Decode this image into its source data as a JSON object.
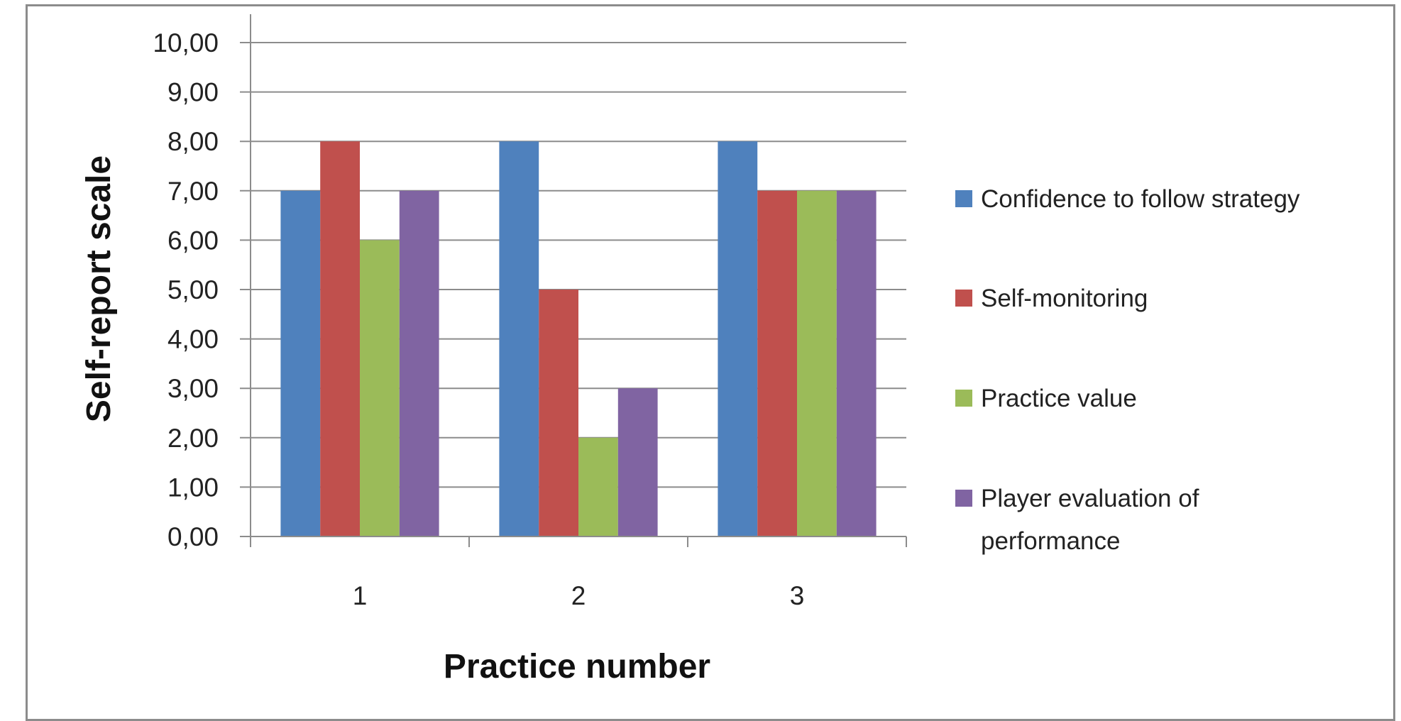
{
  "chart_data": {
    "type": "bar",
    "title": "",
    "xlabel": "Practice number",
    "ylabel": "Self-report scale",
    "categories": [
      "1",
      "2",
      "3"
    ],
    "ylim": [
      0,
      10
    ],
    "yticks": [
      "0,00",
      "1,00",
      "2,00",
      "3,00",
      "4,00",
      "5,00",
      "6,00",
      "7,00",
      "8,00",
      "9,00",
      "10,00"
    ],
    "grid": true,
    "legend_position": "right",
    "series": [
      {
        "name": "Confidence to follow strategy",
        "values": [
          7,
          8,
          8
        ],
        "color": "#4F81BD"
      },
      {
        "name": "Self-monitoring",
        "values": [
          8,
          5,
          7
        ],
        "color": "#C0504D"
      },
      {
        "name": "Practice value",
        "values": [
          6,
          2,
          7
        ],
        "color": "#9BBB59"
      },
      {
        "name": "Player evaluation of performance",
        "values": [
          7,
          3,
          7
        ],
        "color": "#8064A2"
      }
    ]
  }
}
